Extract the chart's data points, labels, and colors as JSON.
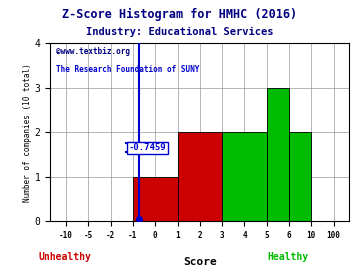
{
  "title": "Z-Score Histogram for HMHC (2016)",
  "subtitle": "Industry: Educational Services",
  "watermark1": "©www.textbiz.org",
  "watermark2": "The Research Foundation of SUNY",
  "xlabel": "Score",
  "ylabel": "Number of companies (10 total)",
  "unhealthy_label": "Unhealthy",
  "healthy_label": "Healthy",
  "zscore_value": -0.7459,
  "bar_lefts": [
    -1,
    1,
    3,
    5,
    6
  ],
  "bar_rights": [
    1,
    3,
    5,
    6,
    10
  ],
  "bar_heights": [
    1,
    2,
    2,
    3,
    2
  ],
  "bar_colors": [
    "#cc0000",
    "#cc0000",
    "#00bb00",
    "#00bb00",
    "#00bb00"
  ],
  "xticks": [
    -10,
    -5,
    -2,
    -1,
    0,
    1,
    2,
    3,
    4,
    5,
    6,
    10,
    100
  ],
  "xtick_labels": [
    "-10",
    "-5",
    "-2",
    "-1",
    "0",
    "1",
    "2",
    "3",
    "4",
    "5",
    "6",
    "10",
    "100"
  ],
  "yticks": [
    0,
    1,
    2,
    3,
    4
  ],
  "ylim": [
    0,
    4
  ],
  "bg_color": "#ffffff",
  "grid_color": "#999999",
  "title_color": "#000080",
  "watermark_color1": "#000080",
  "watermark_color2": "#0000cc",
  "unhealthy_color": "#cc0000",
  "healthy_color": "#00bb00",
  "zscore_line_color": "#0000cc",
  "zscore_label_color": "#0000cc"
}
